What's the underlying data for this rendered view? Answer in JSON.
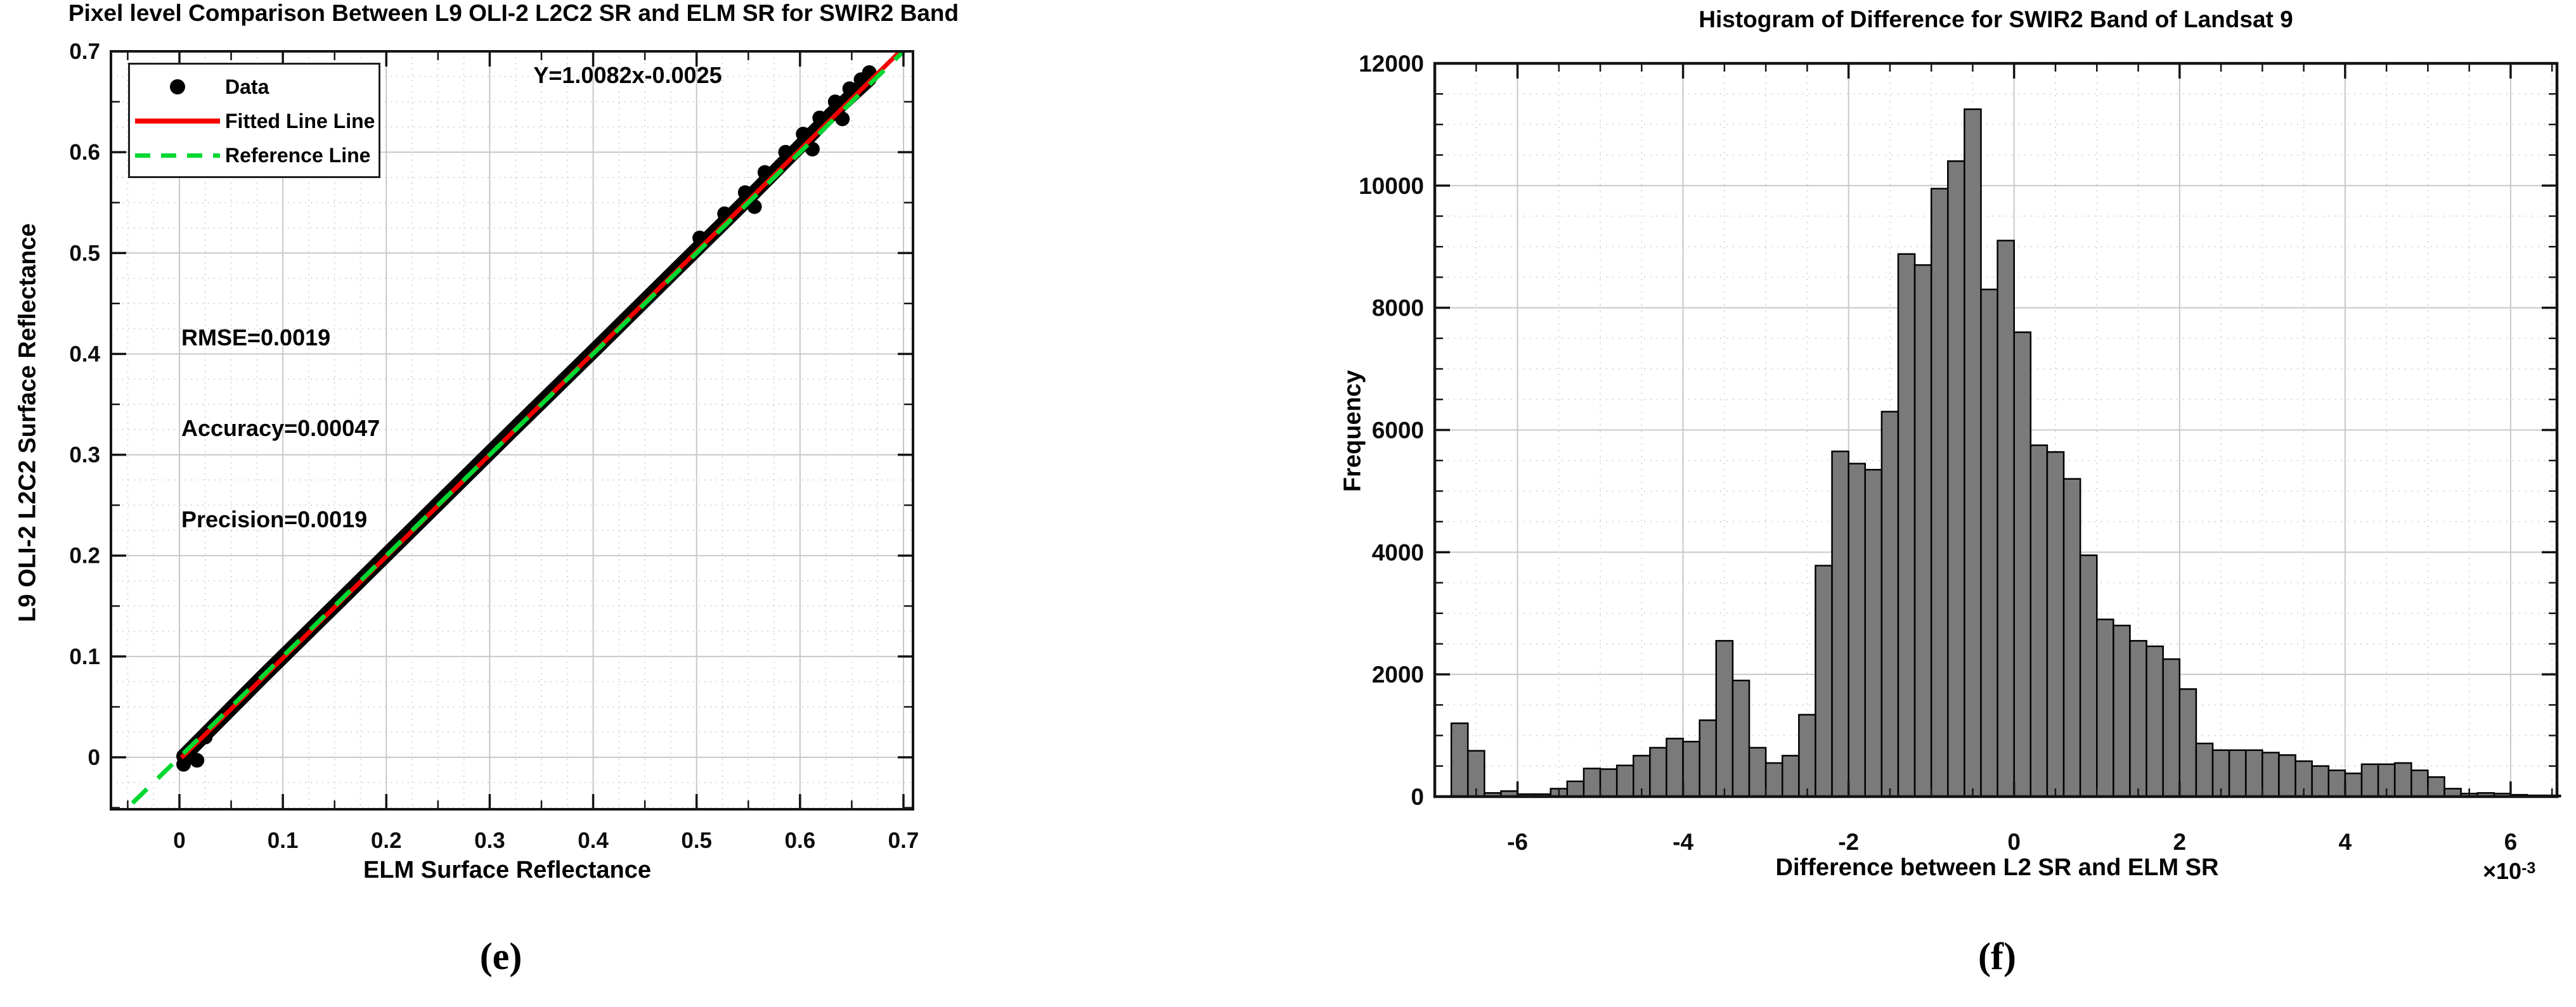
{
  "panel_e": {
    "title": "Pixel level Comparison Between L9 OLI-2 L2C2 SR and ELM SR for SWIR2 Band",
    "xlabel": "ELM Surface Reflectance",
    "ylabel": "L9 OLI-2 L2C2 Surface Reflectance",
    "equation": "Y=1.0082x-0.0025",
    "stats": {
      "rmse": "RMSE=0.0019",
      "accuracy": "Accuracy=0.00047",
      "precision": "Precision=0.0019"
    },
    "legend": {
      "data": "Data",
      "fitted": "Fitted Line Line",
      "reference": "Reference Line"
    },
    "caption": "(e)"
  },
  "panel_f": {
    "title": "Histogram of Difference for SWIR2 Band of Landsat 9",
    "xlabel": "Difference between L2 SR and ELM SR",
    "ylabel": "Frequency",
    "multiplier": {
      "base": "×10",
      "exp": "-3"
    },
    "caption": "(f)"
  },
  "chart_data": [
    {
      "type": "scatter",
      "panel": "e",
      "title": "Pixel level Comparison Between L9 OLI-2 L2C2 SR and ELM SR for SWIR2 Band",
      "xlabel": "ELM Surface Reflectance",
      "ylabel": "L9 OLI-2 L2C2 Surface Reflectance",
      "xlim": [
        -0.066,
        0.709
      ],
      "ylim": [
        -0.0515,
        0.7
      ],
      "x_ticks": [
        0,
        0.1,
        0.2,
        0.3,
        0.4,
        0.5,
        0.6,
        0.7
      ],
      "x_tick_labels": [
        "0",
        "0.1",
        "0.2",
        "0.3",
        "0.4",
        "0.5",
        "0.6",
        "0.7"
      ],
      "y_ticks": [
        0,
        0.1,
        0.2,
        0.3,
        0.4,
        0.5,
        0.6,
        0.7
      ],
      "y_tick_labels": [
        "0",
        "0.1",
        "0.2",
        "0.3",
        "0.4",
        "0.5",
        "0.6",
        "0.7"
      ],
      "grid": {
        "major_step": 0.1,
        "minor_grid_step": 0.025,
        "minor_tick_step": 0.05
      },
      "fit_line": {
        "label": "Y=1.0082x-0.0025",
        "slope": 1.0082,
        "intercept": -0.0025,
        "color": "#f40000",
        "x_range": [
          0.002,
          0.709
        ]
      },
      "reference_line": {
        "slope": 1,
        "intercept": 0,
        "color": "#00d832",
        "dashed": true
      },
      "stats": {
        "RMSE": 0.0019,
        "Accuracy": 0.00047,
        "Precision": 0.0019
      },
      "data_series_name": "Data",
      "marker_color": "#000000",
      "data_band_points": [
        [
          0.004,
          0.001
        ],
        [
          0.08,
          0.0795
        ],
        [
          0.16,
          0.1602
        ],
        [
          0.24,
          0.2412
        ],
        [
          0.32,
          0.3222
        ],
        [
          0.4,
          0.4025
        ],
        [
          0.48,
          0.4835
        ],
        [
          0.545,
          0.549
        ],
        [
          0.6,
          0.606
        ],
        [
          0.63,
          0.6375
        ],
        [
          0.667,
          0.6725
        ]
      ],
      "outlier_points": [
        [
          0.004,
          -0.007
        ],
        [
          0.01,
          0.003
        ],
        [
          0.017,
          -0.003
        ],
        [
          0.025,
          0.02
        ],
        [
          0.503,
          0.515
        ],
        [
          0.527,
          0.539
        ],
        [
          0.547,
          0.56
        ],
        [
          0.566,
          0.58
        ],
        [
          0.586,
          0.6
        ],
        [
          0.603,
          0.618
        ],
        [
          0.619,
          0.634
        ],
        [
          0.634,
          0.65
        ],
        [
          0.648,
          0.663
        ],
        [
          0.659,
          0.672
        ],
        [
          0.667,
          0.679
        ],
        [
          0.556,
          0.546
        ],
        [
          0.612,
          0.603
        ],
        [
          0.641,
          0.633
        ]
      ]
    },
    {
      "type": "bar",
      "panel": "f",
      "title": "Histogram of Difference for SWIR2 Band of Landsat 9",
      "xlabel": "Difference between L2 SR and ELM SR",
      "ylabel": "Frequency",
      "x_unit_multiplier": "1e-3",
      "xlim": [
        -7.0,
        6.56
      ],
      "ylim": [
        0,
        12000
      ],
      "x_ticks": [
        -6,
        -4,
        -2,
        0,
        2,
        4,
        6
      ],
      "x_tick_labels": [
        "-6",
        "-4",
        "-2",
        "0",
        "2",
        "4",
        "6"
      ],
      "y_ticks": [
        0,
        2000,
        4000,
        6000,
        8000,
        10000,
        12000
      ],
      "y_tick_labels": [
        "0",
        "2000",
        "4000",
        "6000",
        "8000",
        "10000",
        "12000"
      ],
      "grid": {
        "x_major": 2,
        "x_minor": 0.5,
        "y_major": 2000,
        "y_minor": 500
      },
      "bin_width": 0.2,
      "bin_centers": [
        -6.7,
        -6.5,
        -6.3,
        -6.1,
        -5.9,
        -5.7,
        -5.5,
        -5.3,
        -5.1,
        -4.9,
        -4.7,
        -4.5,
        -4.3,
        -4.1,
        -3.9,
        -3.7,
        -3.5,
        -3.3,
        -3.1,
        -2.9,
        -2.7,
        -2.5,
        -2.3,
        -2.1,
        -1.9,
        -1.7,
        -1.5,
        -1.3,
        -1.1,
        -0.9,
        -0.7,
        -0.5,
        -0.3,
        -0.1,
        0.1,
        0.3,
        0.5,
        0.7,
        0.9,
        1.1,
        1.3,
        1.5,
        1.7,
        1.9,
        2.1,
        2.3,
        2.5,
        2.7,
        2.9,
        3.1,
        3.3,
        3.5,
        3.7,
        3.9,
        4.1,
        4.3,
        4.5,
        4.7,
        4.9,
        5.1,
        5.3,
        5.5,
        5.7,
        5.9,
        6.1,
        6.3,
        6.5
      ],
      "frequencies": [
        1200,
        750,
        60,
        90,
        40,
        40,
        130,
        250,
        460,
        450,
        510,
        670,
        800,
        950,
        900,
        1250,
        2550,
        1900,
        800,
        550,
        670,
        1340,
        3780,
        5650,
        5450,
        5350,
        6300,
        8880,
        8700,
        9950,
        10400,
        11250,
        8300,
        9100,
        7600,
        5750,
        5640,
        5200,
        3950,
        2900,
        2800,
        2550,
        2460,
        2250,
        1760,
        870,
        760,
        760,
        760,
        720,
        680,
        580,
        500,
        430,
        380,
        530,
        530,
        550,
        430,
        320,
        130,
        50,
        60,
        50,
        30,
        20,
        20
      ],
      "bar_fill": "#7a7a7a",
      "bar_edge": "#000000"
    }
  ]
}
